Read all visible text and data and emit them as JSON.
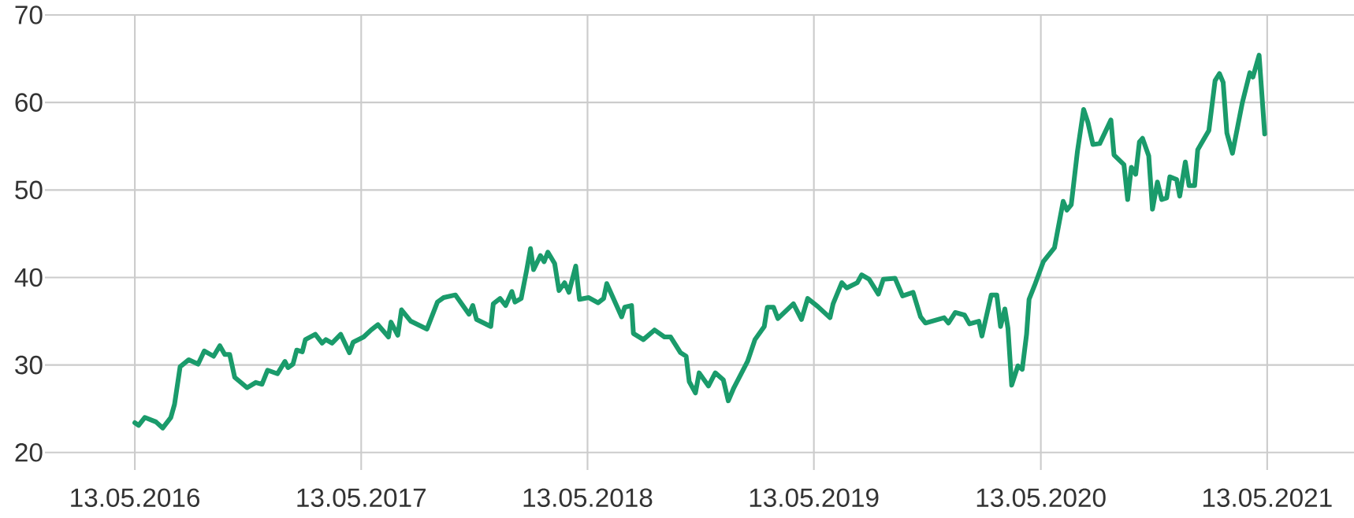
{
  "chart_data": {
    "type": "line",
    "xlim": [
      "2015-12-20",
      "2021-09-30"
    ],
    "ylim": [
      18,
      70
    ],
    "xticks": [
      {
        "value": "2016-05-13",
        "label": "13.05.2016"
      },
      {
        "value": "2017-05-13",
        "label": "13.05.2017"
      },
      {
        "value": "2018-05-13",
        "label": "13.05.2018"
      },
      {
        "value": "2019-05-13",
        "label": "13.05.2019"
      },
      {
        "value": "2020-05-13",
        "label": "13.05.2020"
      },
      {
        "value": "2021-05-13",
        "label": "13.05.2021"
      }
    ],
    "yticks": [
      20,
      30,
      40,
      50,
      60,
      70
    ],
    "grid": true,
    "x": [
      "2016-05-13",
      "2016-05-19",
      "2016-05-29",
      "2016-06-16",
      "2016-06-27",
      "2016-07-10",
      "2016-07-16",
      "2016-07-25",
      "2016-08-08",
      "2016-08-23",
      "2016-09-02",
      "2016-09-17",
      "2016-09-27",
      "2016-10-05",
      "2016-10-13",
      "2016-10-21",
      "2016-11-10",
      "2016-11-24",
      "2016-12-04",
      "2016-12-13",
      "2016-12-29",
      "2017-01-10",
      "2017-01-15",
      "2017-01-23",
      "2017-01-29",
      "2017-02-07",
      "2017-02-12",
      "2017-02-28",
      "2017-03-11",
      "2017-03-17",
      "2017-03-27",
      "2017-04-10",
      "2017-04-24",
      "2017-04-30",
      "2017-05-17",
      "2017-05-29",
      "2017-06-09",
      "2017-06-26",
      "2017-06-30",
      "2017-07-11",
      "2017-07-17",
      "2017-08-01",
      "2017-08-27",
      "2017-09-13",
      "2017-09-23",
      "2017-10-12",
      "2017-11-03",
      "2017-11-09",
      "2017-11-15",
      "2017-12-08",
      "2017-12-12",
      "2017-12-23",
      "2018-01-01",
      "2018-01-11",
      "2018-01-16",
      "2018-01-26",
      "2018-02-04",
      "2018-02-10",
      "2018-02-15",
      "2018-02-26",
      "2018-03-04",
      "2018-03-10",
      "2018-03-21",
      "2018-03-28",
      "2018-04-06",
      "2018-04-13",
      "2018-04-24",
      "2018-04-30",
      "2018-05-15",
      "2018-05-30",
      "2018-06-08",
      "2018-06-13",
      "2018-07-07",
      "2018-07-12",
      "2018-07-23",
      "2018-07-26",
      "2018-08-11",
      "2018-08-29",
      "2018-09-14",
      "2018-09-24",
      "2018-10-10",
      "2018-10-19",
      "2018-10-24",
      "2018-11-03",
      "2018-11-09",
      "2018-11-24",
      "2018-12-05",
      "2018-12-18",
      "2018-12-26",
      "2019-01-04",
      "2019-01-26",
      "2019-02-07",
      "2019-02-22",
      "2019-02-27",
      "2019-03-09",
      "2019-03-16",
      "2019-04-10",
      "2019-04-23",
      "2019-05-03",
      "2019-05-19",
      "2019-06-08",
      "2019-06-13",
      "2019-06-27",
      "2019-07-05",
      "2019-07-22",
      "2019-07-29",
      "2019-08-10",
      "2019-08-25",
      "2019-09-02",
      "2019-09-21",
      "2019-10-03",
      "2019-10-20",
      "2019-11-01",
      "2019-11-09",
      "2019-12-09",
      "2019-12-16",
      "2019-12-27",
      "2020-01-11",
      "2020-01-19",
      "2020-02-03",
      "2020-02-08",
      "2020-02-23",
      "2020-03-03",
      "2020-03-09",
      "2020-03-16",
      "2020-03-21",
      "2020-03-27",
      "2020-04-06",
      "2020-04-13",
      "2020-04-20",
      "2020-04-24",
      "2020-05-03",
      "2020-05-17",
      "2020-06-04",
      "2020-06-18",
      "2020-06-24",
      "2020-07-01",
      "2020-07-11",
      "2020-07-21",
      "2020-07-28",
      "2020-08-05",
      "2020-08-16",
      "2020-09-03",
      "2020-09-08",
      "2020-09-24",
      "2020-09-30",
      "2020-10-06",
      "2020-10-13",
      "2020-10-19",
      "2020-10-24",
      "2020-11-03",
      "2020-11-09",
      "2020-11-17",
      "2020-11-24",
      "2020-12-02",
      "2020-12-07",
      "2020-12-18",
      "2020-12-23",
      "2021-01-01",
      "2021-01-07",
      "2021-01-16",
      "2021-01-21",
      "2021-02-08",
      "2021-02-18",
      "2021-02-25",
      "2021-03-03",
      "2021-03-09",
      "2021-03-18",
      "2021-04-03",
      "2021-04-15",
      "2021-04-20",
      "2021-04-30",
      "2021-05-09"
    ],
    "series": [
      {
        "color": "#1a9b6b",
        "values": [
          23.4,
          23.1,
          24.0,
          23.5,
          22.8,
          24.0,
          25.5,
          29.8,
          30.6,
          30.1,
          31.6,
          31.0,
          32.2,
          31.2,
          31.2,
          28.6,
          27.4,
          28.0,
          27.8,
          29.4,
          29.0,
          30.4,
          29.7,
          30.1,
          31.7,
          31.5,
          32.9,
          33.5,
          32.5,
          32.9,
          32.5,
          33.5,
          31.4,
          32.6,
          33.2,
          34.0,
          34.6,
          33.2,
          34.9,
          33.4,
          36.3,
          35.0,
          34.1,
          37.2,
          37.7,
          38.0,
          35.8,
          36.8,
          35.2,
          34.4,
          37.0,
          37.6,
          36.8,
          38.4,
          37.2,
          37.6,
          40.9,
          43.3,
          40.9,
          42.5,
          41.8,
          42.9,
          41.6,
          38.5,
          39.4,
          38.3,
          41.3,
          37.5,
          37.7,
          37.1,
          37.6,
          39.3,
          35.5,
          36.6,
          36.8,
          33.6,
          32.9,
          34.0,
          33.2,
          33.2,
          31.4,
          31.0,
          28.1,
          26.8,
          29.1,
          27.6,
          29.1,
          28.3,
          25.9,
          27.4,
          30.4,
          32.9,
          34.4,
          36.6,
          36.6,
          35.3,
          37.0,
          35.2,
          37.6,
          36.7,
          35.4,
          37.0,
          39.4,
          38.8,
          39.4,
          40.3,
          39.8,
          38.1,
          39.8,
          39.9,
          37.9,
          38.3,
          35.5,
          34.8,
          35.4,
          34.8,
          36.0,
          35.7,
          34.7,
          35.0,
          33.3,
          38.0,
          38.0,
          34.4,
          36.4,
          34.2,
          27.7,
          29.9,
          29.5,
          33.5,
          37.5,
          39.1,
          41.8,
          43.4,
          48.7,
          47.7,
          48.3,
          54.4,
          59.2,
          57.7,
          55.2,
          55.3,
          58.0,
          54.0,
          52.9,
          48.9,
          52.6,
          51.8,
          55.5,
          55.9,
          53.9,
          47.8,
          50.9,
          48.9,
          49.1,
          51.5,
          51.2,
          49.3,
          53.2,
          50.5,
          50.5,
          54.6,
          56.8,
          62.5,
          63.3,
          62.3,
          56.5,
          54.2,
          60.0,
          63.4,
          62.9,
          65.4,
          56.4
        ]
      }
    ]
  }
}
